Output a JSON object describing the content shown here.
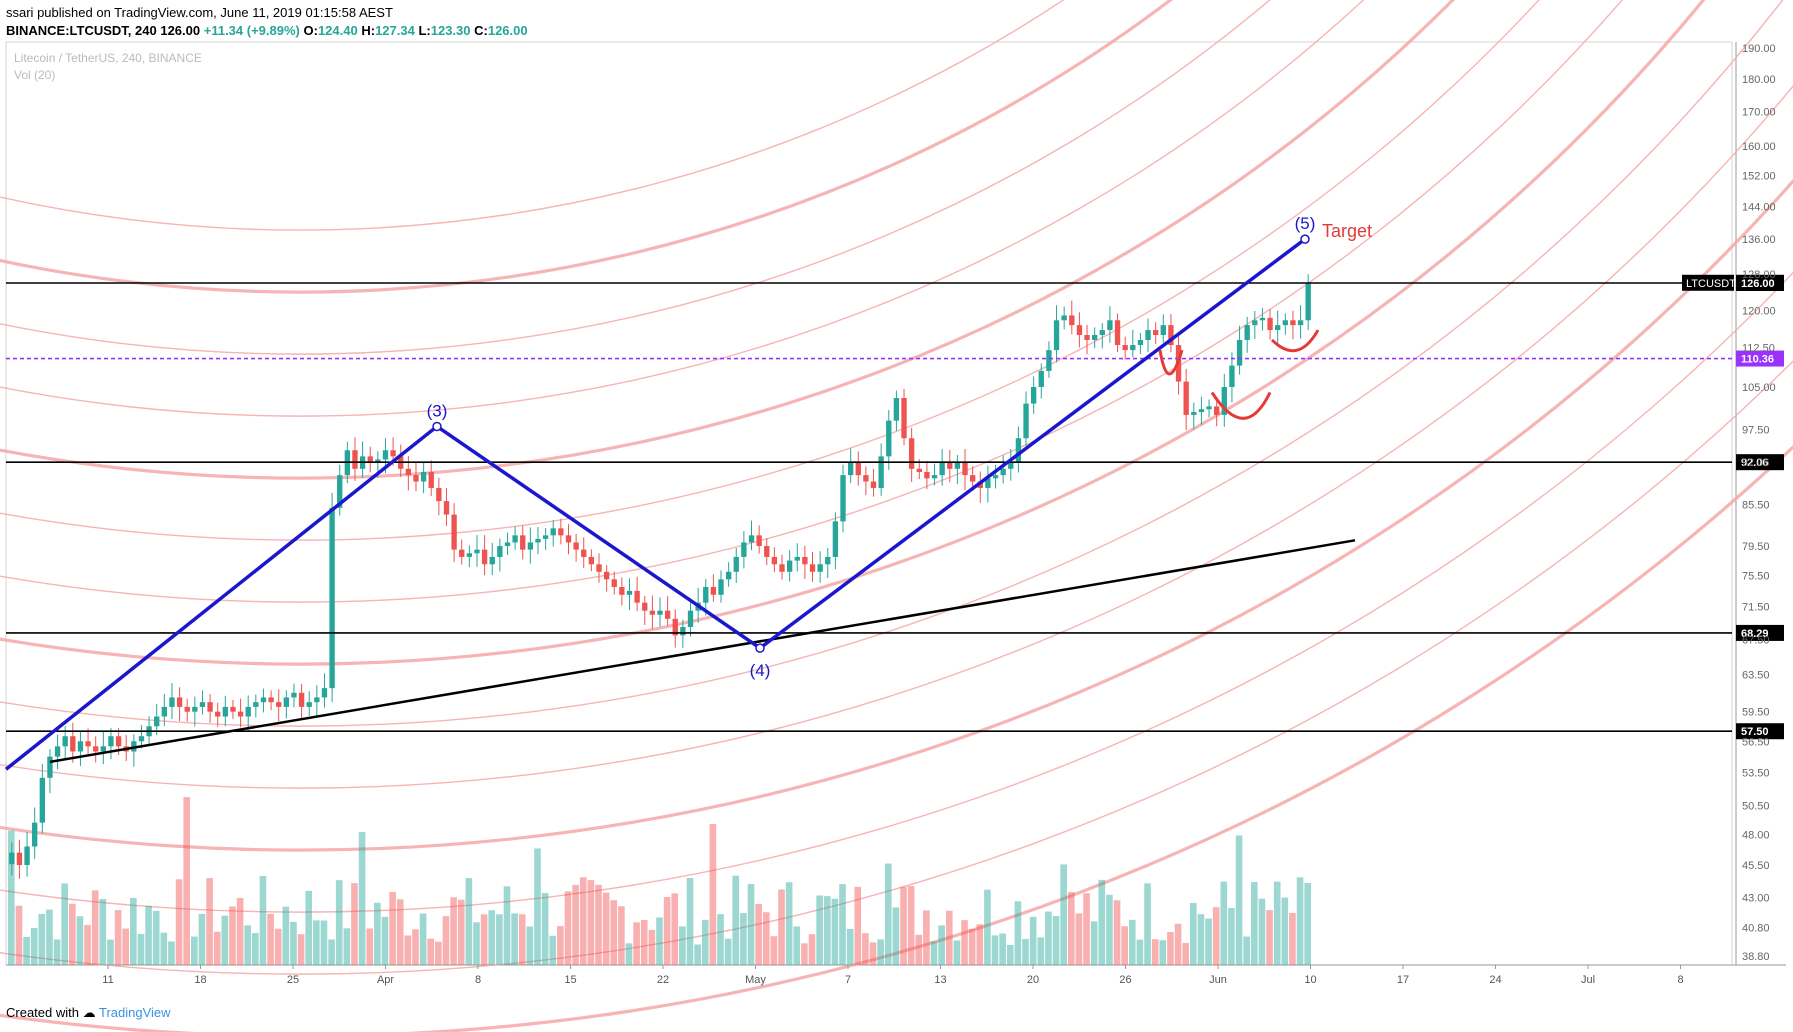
{
  "header": {
    "author": "ssari",
    "published": "published on TradingView.com, June 11, 2019 01:15:58 AEST",
    "symbol": "BINANCE:LTCUSDT, 240",
    "last": "126.00",
    "change": "+11.34 (+9.89%)",
    "ohlc": {
      "o_label": "O:",
      "o": "124.40",
      "h_label": "H:",
      "h": "127.34",
      "l_label": "L:",
      "l": "123.30",
      "c_label": "C:",
      "c": "126.00"
    }
  },
  "legend": {
    "title": "Litecoin / TetherUS, 240, BINANCE",
    "volume": "Vol (20)"
  },
  "footer": {
    "created_with": "Created with",
    "brand": "TradingView"
  },
  "colors": {
    "up": "#26a69a",
    "down": "#ef5350",
    "wave": "#1a17cc",
    "arc": "#f4a7a7",
    "level": "#000000",
    "dashed": "#9b30ff",
    "target": "#e53935"
  },
  "chart_data": {
    "type": "candlestick",
    "symbol": "LTCUSDT",
    "interval": "240",
    "y_axis_labels": [
      "190.00",
      "180.00",
      "170.00",
      "160.00",
      "152.00",
      "144.00",
      "136.00",
      "128.00",
      "120.00",
      "112.50",
      "105.00",
      "97.50",
      "92.06",
      "85.50",
      "79.50",
      "75.50",
      "71.50",
      "67.50",
      "63.50",
      "59.50",
      "56.50",
      "53.50",
      "50.50",
      "48.00",
      "45.50",
      "43.00",
      "40.80",
      "38.80"
    ],
    "y_log_scale": true,
    "y_range": [
      38.2,
      192
    ],
    "x_axis_labels": [
      "11",
      "18",
      "25",
      "Apr",
      "8",
      "15",
      "22",
      "May",
      "7",
      "13",
      "20",
      "26",
      "Jun",
      "10",
      "17",
      "24",
      "Jul",
      "8"
    ],
    "horizontal_levels": [
      {
        "price": 125.95,
        "label": "125.95"
      },
      {
        "price": 92.06,
        "label": "92.06"
      },
      {
        "price": 68.29,
        "label": "68.29"
      },
      {
        "price": 57.5,
        "label": "57.50"
      }
    ],
    "dashed_level": {
      "price": 110.36,
      "label": "110.36"
    },
    "last_price": {
      "symbol": "LTCUSDT",
      "price": 126.0,
      "label": "126.00"
    },
    "elliott_waves": [
      {
        "label": "(3)",
        "price": 98.0
      },
      {
        "label": "(4)",
        "price": 66.5
      },
      {
        "label": "(5)",
        "price": 136.0
      }
    ],
    "annotation": "Target",
    "close_series": [
      46.5,
      45.5,
      47,
      49,
      53,
      55,
      56,
      57,
      55.5,
      56.5,
      56,
      55.5,
      56,
      57,
      56,
      55.5,
      56.5,
      57,
      58,
      59,
      60,
      61,
      60,
      59.5,
      60,
      60.5,
      59.5,
      59,
      60,
      59.5,
      59,
      60,
      60.5,
      61,
      60.5,
      60,
      61,
      61.5,
      60,
      60.5,
      61,
      62,
      85,
      90,
      94,
      91,
      93,
      92,
      92.5,
      94,
      93,
      91,
      90,
      89,
      90.5,
      88,
      86,
      84,
      79,
      78,
      78.5,
      79,
      77,
      78,
      79.5,
      80,
      81,
      79,
      80,
      80.5,
      81,
      82,
      81,
      80,
      79,
      78,
      77,
      76,
      75,
      74,
      73,
      73.5,
      72,
      71,
      70.5,
      71,
      70,
      68,
      69,
      71,
      72,
      74,
      73,
      75,
      76,
      78,
      80,
      81,
      79.5,
      78,
      77,
      76,
      77.5,
      78,
      77,
      76,
      77,
      78,
      83,
      90,
      92,
      90,
      89,
      88,
      93,
      99,
      103,
      96,
      91,
      90.5,
      89.5,
      90,
      92,
      91,
      92,
      90,
      89,
      88,
      89.5,
      90,
      91,
      92,
      96,
      102,
      105,
      108,
      112,
      118,
      119,
      117,
      115,
      114,
      115,
      116,
      118,
      113,
      112,
      113,
      114,
      116,
      115,
      117,
      113,
      106,
      100,
      100.5,
      101,
      101.5,
      100,
      105,
      109,
      114,
      117,
      118,
      118.5,
      116,
      117,
      118,
      117,
      118,
      126
    ]
  }
}
